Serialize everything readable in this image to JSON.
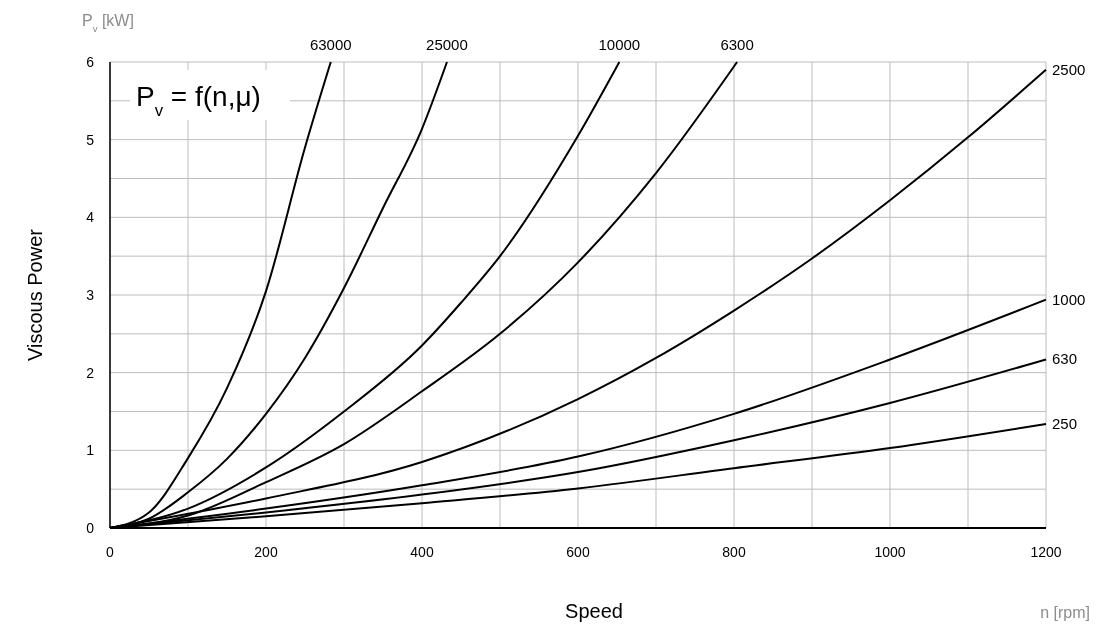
{
  "chart_data": {
    "type": "line",
    "xlabel": "Speed",
    "ylabel": "Viscous Power",
    "annotations": [
      "P$_{v}$ = f(n,μ)",
      "P$_{v}$ [kW]",
      "n [rpm]"
    ],
    "xlim": [
      0,
      1200
    ],
    "ylim": [
      0,
      6
    ],
    "xticks": [
      0,
      {
        "value": 100,
        "label": null
      },
      200,
      {
        "value": 300,
        "label": null
      },
      400,
      {
        "value": 500,
        "label": null
      },
      600,
      {
        "value": 700,
        "label": null
      },
      800,
      {
        "value": 900,
        "label": null
      },
      1000,
      {
        "value": 1100,
        "label": null
      },
      1200
    ],
    "yticks": [
      0,
      {
        "value": 0.5,
        "label": null
      },
      1,
      {
        "value": 1.5,
        "label": null
      },
      2,
      {
        "value": 2.5,
        "label": null
      },
      3,
      {
        "value": 3.5,
        "label": null
      },
      4,
      {
        "value": 4.5,
        "label": null
      },
      5,
      {
        "value": 5.5,
        "label": null
      },
      6
    ],
    "grid": true,
    "marker": "none",
    "line_style": "solid",
    "series": [
      {
        "name": "63000",
        "color": "#000000",
        "x": [
          0,
          50,
          100,
          150,
          200,
          250,
          283
        ],
        "values": [
          0,
          0.2,
          0.9,
          1.8,
          3.05,
          4.9,
          6
        ]
      },
      {
        "name": "25000",
        "color": "#000000",
        "x": [
          0,
          50,
          100,
          150,
          200,
          250,
          300,
          350,
          400,
          432
        ],
        "values": [
          0,
          0.12,
          0.46,
          0.89,
          1.47,
          2.19,
          3.09,
          4.12,
          5.14,
          6
        ]
      },
      {
        "name": "10000",
        "color": "#000000",
        "x": [
          0,
          100,
          200,
          300,
          400,
          450,
          500,
          600,
          653
        ],
        "values": [
          0,
          0.25,
          0.78,
          1.5,
          2.35,
          2.9,
          3.5,
          5.05,
          6
        ]
      },
      {
        "name": "6300",
        "color": "#000000",
        "x": [
          0,
          100,
          200,
          300,
          400,
          500,
          600,
          700,
          804
        ],
        "values": [
          0,
          0.16,
          0.59,
          1.08,
          1.76,
          2.5,
          3.42,
          4.57,
          6
        ]
      },
      {
        "name": "2500",
        "color": "#000000",
        "x": [
          0,
          200,
          400,
          600,
          700,
          800,
          900,
          1000,
          1100,
          1200
        ],
        "values": [
          0,
          0.38,
          0.85,
          1.66,
          2.19,
          2.8,
          3.47,
          4.22,
          5.03,
          5.9
        ]
      },
      {
        "name": "1000",
        "color": "#000000",
        "x": [
          0,
          200,
          400,
          600,
          800,
          1000,
          1200
        ],
        "values": [
          0,
          0.25,
          0.55,
          0.92,
          1.47,
          2.17,
          2.94
        ]
      },
      {
        "name": "630",
        "color": "#000000",
        "x": [
          0,
          200,
          400,
          600,
          800,
          1000,
          1200
        ],
        "values": [
          0,
          0.2,
          0.43,
          0.72,
          1.13,
          1.61,
          2.17
        ]
      },
      {
        "name": "250",
        "color": "#000000",
        "x": [
          0,
          200,
          400,
          600,
          800,
          1000,
          1200
        ],
        "values": [
          0,
          0.15,
          0.32,
          0.51,
          0.77,
          1.03,
          1.34
        ]
      }
    ]
  }
}
